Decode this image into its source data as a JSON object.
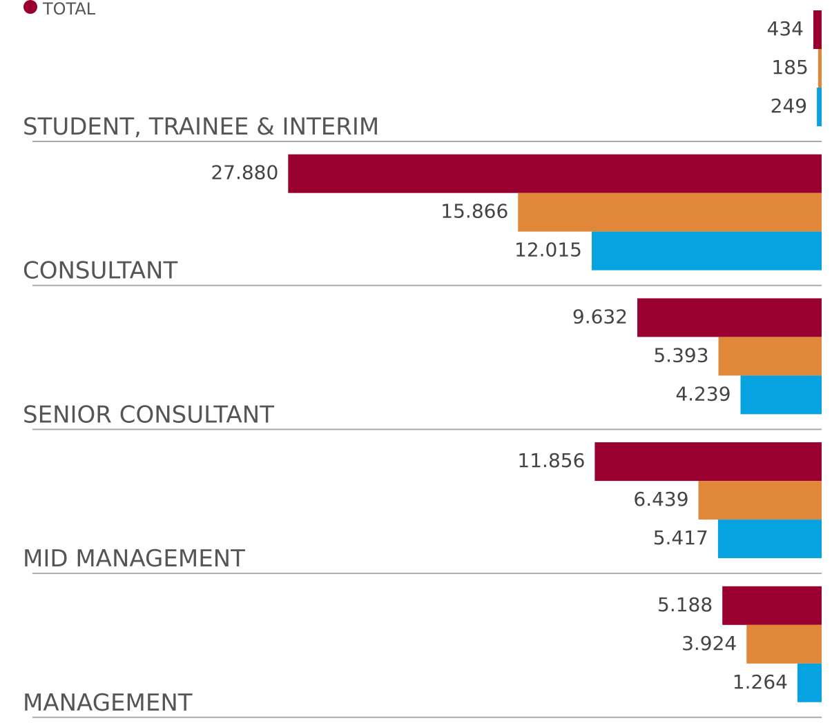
{
  "chart_data": {
    "type": "bar",
    "orientation": "horizontal",
    "categories": [
      "STUDENT, TRAINEE & INTERIM",
      "CONSULTANT",
      "SENIOR CONSULTANT",
      "MID MANAGEMENT",
      "MANAGEMENT"
    ],
    "series": [
      {
        "name": "TOTAL",
        "color": "#990030",
        "values": [
          434,
          27880,
          9632,
          11856,
          5188
        ],
        "value_labels": [
          "434",
          "27.880",
          "9.632",
          "11.856",
          "5.188"
        ]
      },
      {
        "color": "#e0873a",
        "values": [
          185,
          15866,
          5393,
          6439,
          3924
        ],
        "value_labels": [
          "185",
          "15.866",
          "5.393",
          "6.439",
          "3.924"
        ]
      },
      {
        "color": "#06a3e0",
        "values": [
          249,
          12015,
          4239,
          5417,
          1264
        ],
        "value_labels": [
          "249",
          "12.015",
          "4.239",
          "5.417",
          "1.264"
        ]
      }
    ],
    "xlim": [
      0,
      28000
    ]
  }
}
